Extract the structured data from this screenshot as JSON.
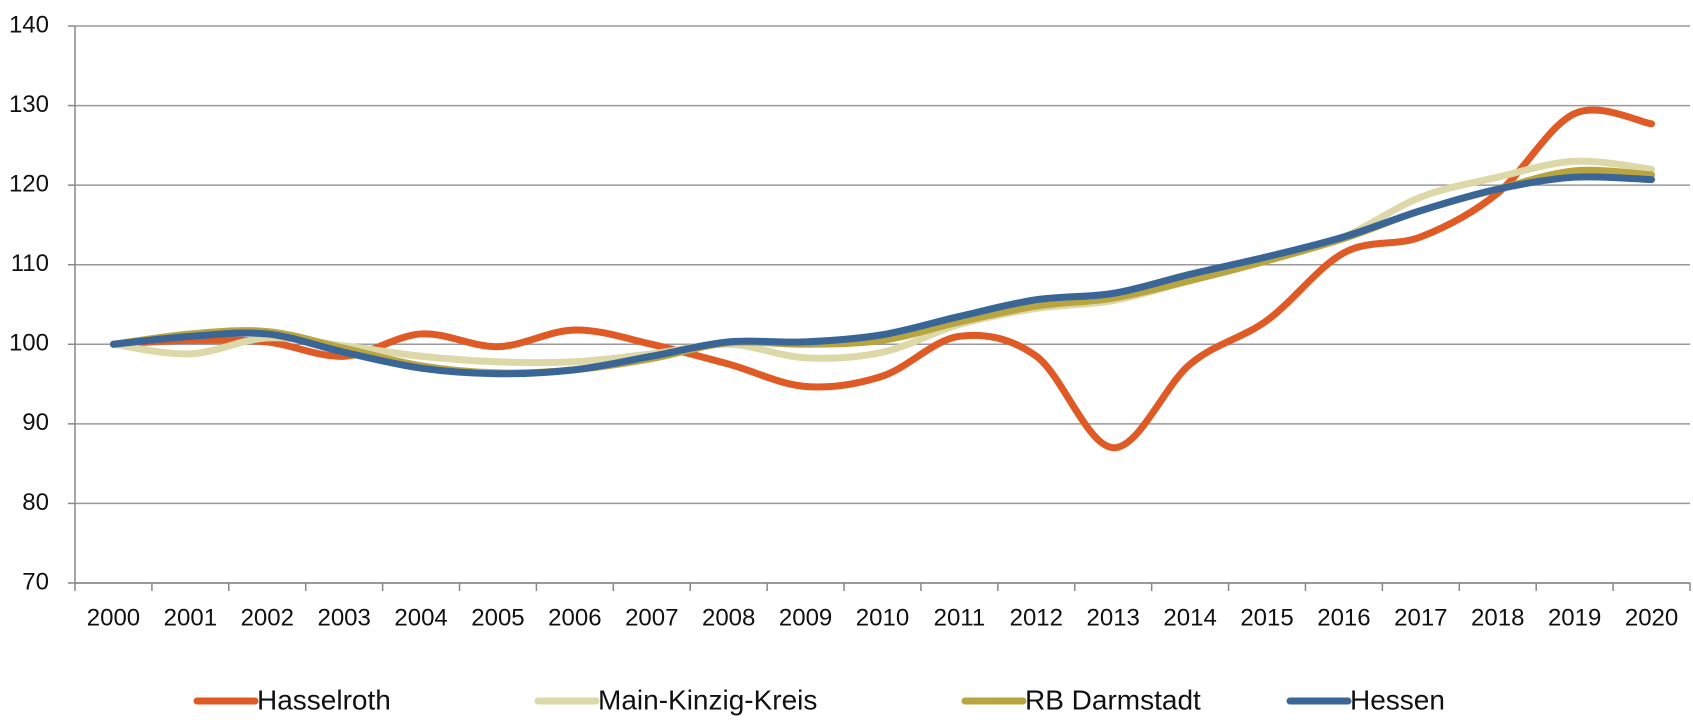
{
  "chart_data": {
    "type": "line",
    "categories": [
      "2000",
      "2001",
      "2002",
      "2003",
      "2004",
      "2005",
      "2006",
      "2007",
      "2008",
      "2009",
      "2010",
      "2011",
      "2012",
      "2013",
      "2014",
      "2015",
      "2016",
      "2017",
      "2018",
      "2019",
      "2020"
    ],
    "series": [
      {
        "name": "Hasselroth",
        "color": "#e05a26",
        "values": [
          100,
          100.5,
          100.3,
          98.5,
          101.3,
          99.7,
          101.8,
          100,
          97.5,
          94.7,
          96,
          101,
          98.5,
          87,
          97.5,
          103,
          111.5,
          113.5,
          119,
          129,
          127.7
        ]
      },
      {
        "name": "Main-Kinzig-Kreis",
        "color": "#ddd8a8",
        "values": [
          100,
          98.8,
          100.8,
          99.8,
          98.5,
          97.8,
          97.8,
          98.8,
          100,
          98.3,
          99,
          102.5,
          104.5,
          105.5,
          108,
          110.5,
          113.5,
          118.5,
          121,
          123,
          122
        ]
      },
      {
        "name": "RB Darmstadt",
        "color": "#b9a53f",
        "values": [
          100,
          101.3,
          101.6,
          99.5,
          97.3,
          96.4,
          96.8,
          98.2,
          100.2,
          100,
          100.5,
          102.8,
          104.8,
          105.8,
          108,
          110.5,
          113.3,
          116.8,
          119.5,
          121.8,
          121.3
        ]
      },
      {
        "name": "Hessen",
        "color": "#3a6597",
        "values": [
          100,
          101,
          101.3,
          99,
          97,
          96.3,
          96.8,
          98.5,
          100.3,
          100.3,
          101.2,
          103.5,
          105.6,
          106.4,
          108.8,
          111,
          113.5,
          116.8,
          119.5,
          121,
          120.7
        ]
      }
    ],
    "ylim": [
      70,
      140
    ],
    "yticks": [
      70,
      80,
      90,
      100,
      110,
      120,
      130,
      140
    ],
    "grid": true,
    "legend": "bottom"
  }
}
